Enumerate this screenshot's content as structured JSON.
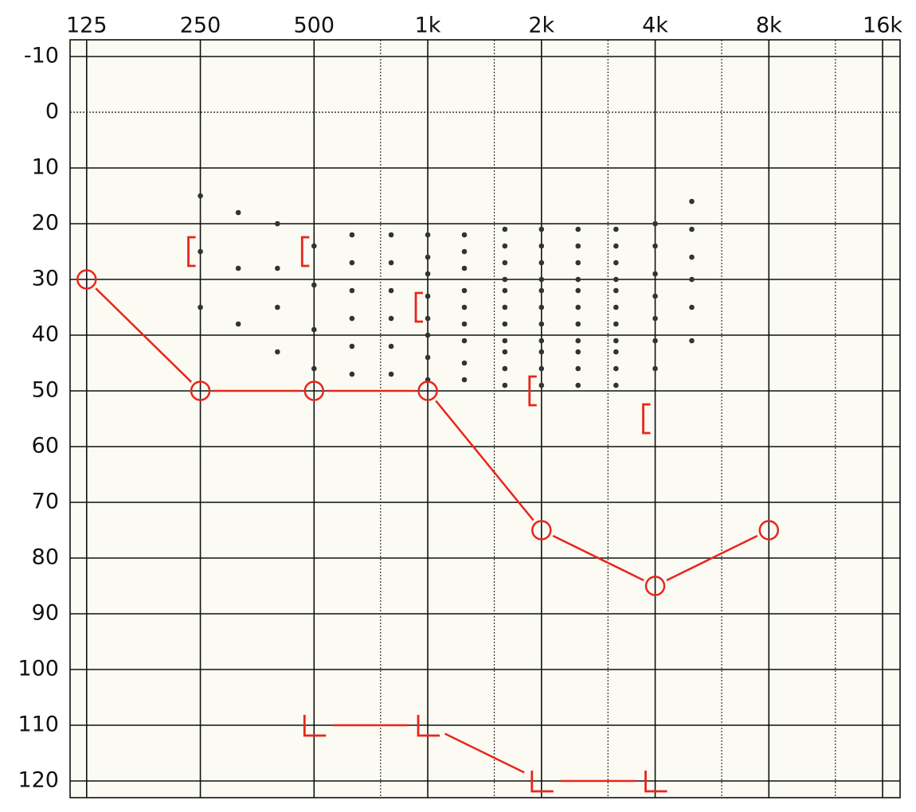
{
  "chart_data": {
    "type": "audiogram",
    "x_scale": "log",
    "y_inverted": true,
    "xlim": [
      113,
      17800
    ],
    "ylim": [
      -13,
      123
    ],
    "xticks": [
      125,
      250,
      500,
      {
        "value": 1000,
        "label": "1k"
      },
      {
        "value": 2000,
        "label": "2k"
      },
      {
        "value": 4000,
        "label": "4k"
      },
      {
        "value": 8000,
        "label": "8k"
      },
      {
        "value": 16000,
        "label": "16k"
      }
    ],
    "minor_xticks": [
      750,
      1500,
      3000,
      6000,
      12000
    ],
    "yticks": [
      -10,
      0,
      10,
      20,
      30,
      40,
      50,
      60,
      70,
      80,
      90,
      100,
      110,
      120
    ],
    "dotted_yticks": [
      0
    ],
    "grid": true,
    "background": "#fbfaf3",
    "series": [
      {
        "symbol": "dot",
        "color": "#333333",
        "connected": false,
        "x": [
          250,
          250,
          250,
          315,
          315,
          315,
          400,
          400,
          400,
          400,
          500,
          500,
          500,
          500,
          630,
          630,
          630,
          630,
          630,
          630,
          800,
          800,
          800,
          800,
          800,
          800,
          1000,
          1000,
          1000,
          1000,
          1000,
          1000,
          1000,
          1000,
          1250,
          1250,
          1250,
          1250,
          1250,
          1250,
          1250,
          1250,
          1250,
          1600,
          1600,
          1600,
          1600,
          1600,
          1600,
          1600,
          1600,
          1600,
          1600,
          1600,
          2000,
          2000,
          2000,
          2000,
          2000,
          2000,
          2000,
          2000,
          2000,
          2000,
          2000,
          2500,
          2500,
          2500,
          2500,
          2500,
          2500,
          2500,
          2500,
          2500,
          2500,
          2500,
          3150,
          3150,
          3150,
          3150,
          3150,
          3150,
          3150,
          3150,
          3150,
          3150,
          3150,
          4000,
          4000,
          4000,
          4000,
          4000,
          4000,
          4000,
          5000,
          5000,
          5000,
          5000,
          5000,
          5000
        ],
        "values": [
          15,
          25,
          35,
          18,
          28,
          38,
          20,
          28,
          35,
          43,
          24,
          31,
          39,
          46,
          22,
          27,
          32,
          37,
          42,
          47,
          22,
          27,
          32,
          37,
          42,
          47,
          22,
          26,
          29,
          33,
          37,
          40,
          44,
          48,
          22,
          25,
          28,
          32,
          35,
          38,
          41,
          45,
          48,
          21,
          24,
          27,
          30,
          32,
          35,
          38,
          41,
          43,
          46,
          49,
          21,
          24,
          27,
          30,
          32,
          35,
          38,
          41,
          43,
          46,
          49,
          21,
          24,
          27,
          30,
          32,
          35,
          38,
          41,
          43,
          46,
          49,
          21,
          24,
          27,
          30,
          32,
          35,
          38,
          41,
          43,
          46,
          49,
          20,
          24,
          29,
          33,
          37,
          41,
          46,
          16,
          21,
          26,
          30,
          35,
          41
        ]
      },
      {
        "symbol": "circle",
        "color": "#e8261c",
        "connected": true,
        "x": [
          125,
          250,
          500,
          1000,
          2000,
          4000,
          8000
        ],
        "values": [
          30,
          50,
          50,
          50,
          75,
          85,
          75
        ]
      },
      {
        "symbol": "bracket",
        "color": "#e8261c",
        "connected": false,
        "x": [
          250,
          500,
          1000,
          2000,
          4000
        ],
        "values": [
          25,
          25,
          35,
          50,
          55
        ]
      },
      {
        "symbol": "no-response",
        "color": "#e8261c",
        "connected": true,
        "x": [
          500,
          1000,
          2000,
          4000
        ],
        "values": [
          110,
          110,
          120,
          120
        ]
      }
    ]
  }
}
